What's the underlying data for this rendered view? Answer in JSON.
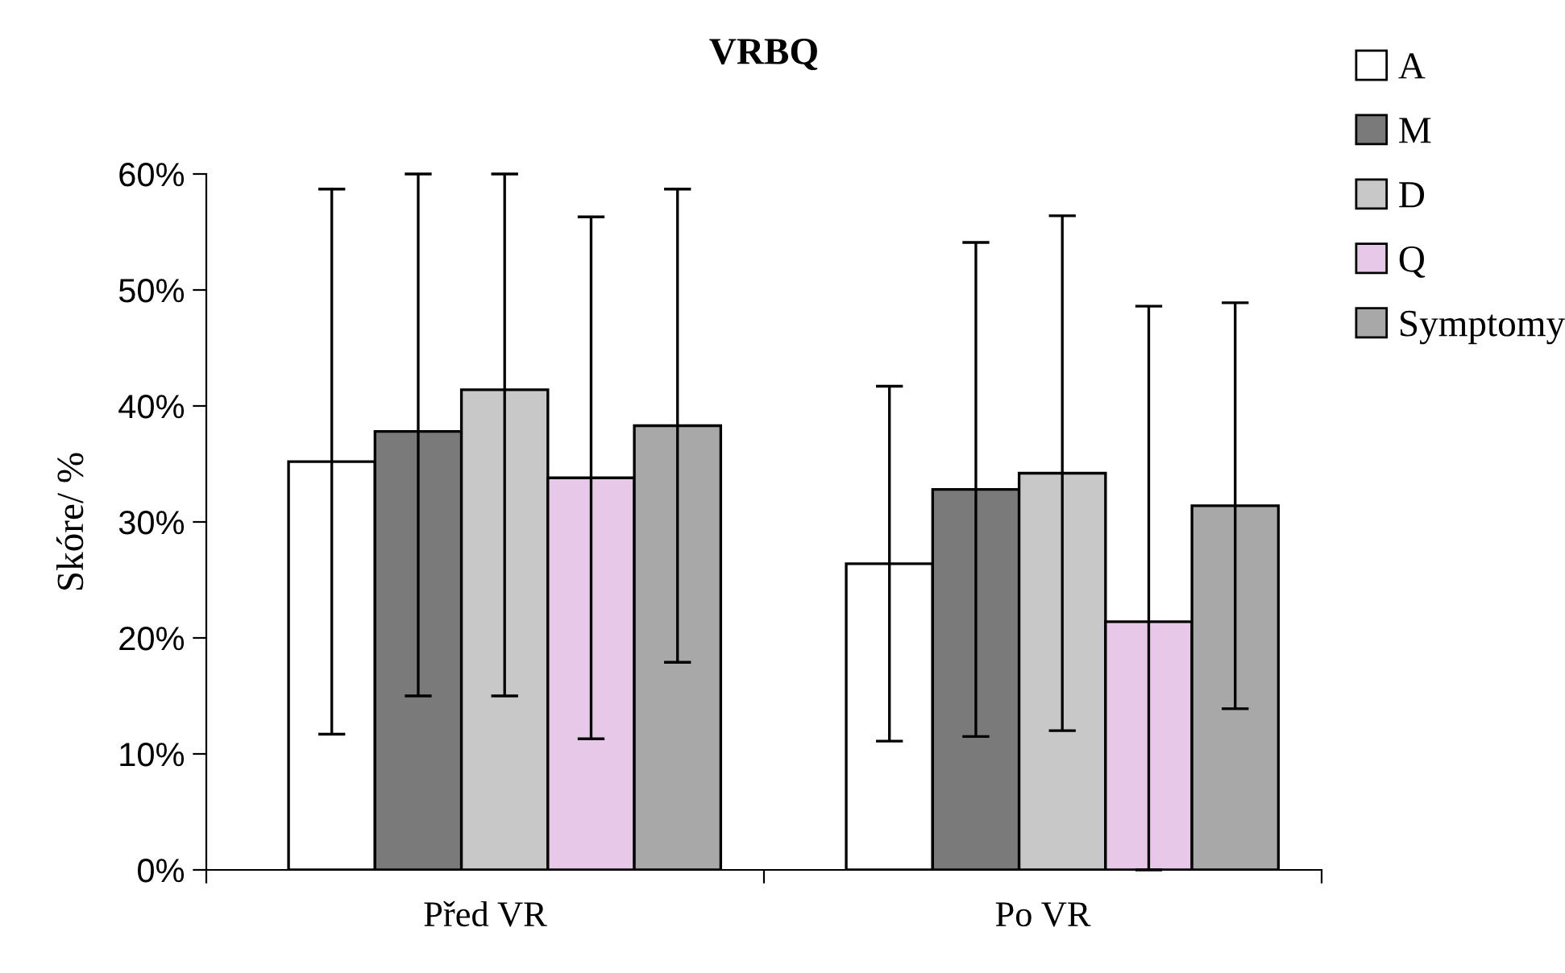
{
  "chart_data": {
    "type": "bar",
    "title": "VRBQ",
    "ylabel": "Skóre/ %",
    "categories": [
      "Před VR",
      "Po VR"
    ],
    "series": [
      {
        "name": "A",
        "color": "#ffffff",
        "values": [
          35.2,
          26.4
        ],
        "errors": [
          23.5,
          15.3
        ]
      },
      {
        "name": "M",
        "color": "#7a7a7a",
        "values": [
          37.8,
          32.8
        ],
        "errors": [
          [
            15.0,
            60
          ],
          21.3
        ]
      },
      {
        "name": "D",
        "color": "#c8c8c8",
        "values": [
          41.4,
          34.2
        ],
        "errors": [
          [
            15.0,
            60
          ],
          22.2
        ]
      },
      {
        "name": "Q",
        "color": "#e8c8e8",
        "values": [
          33.8,
          21.4
        ],
        "errors": [
          22.5,
          [
            0,
            48.6
          ]
        ]
      },
      {
        "name": "Symptomy",
        "color": "#a8a8a8",
        "values": [
          38.3,
          31.4
        ],
        "errors": [
          20.4,
          17.5
        ]
      }
    ],
    "ylim": [
      0,
      60
    ],
    "yticks": [
      {
        "value": 0,
        "label": "0%"
      },
      {
        "value": 10,
        "label": "10%"
      },
      {
        "value": 20,
        "label": "20%"
      },
      {
        "value": 30,
        "label": "30%"
      },
      {
        "value": 40,
        "label": "40%"
      },
      {
        "value": 50,
        "label": "50%"
      },
      {
        "value": 60,
        "label": "60%"
      }
    ],
    "grid": false,
    "legend": "right"
  }
}
